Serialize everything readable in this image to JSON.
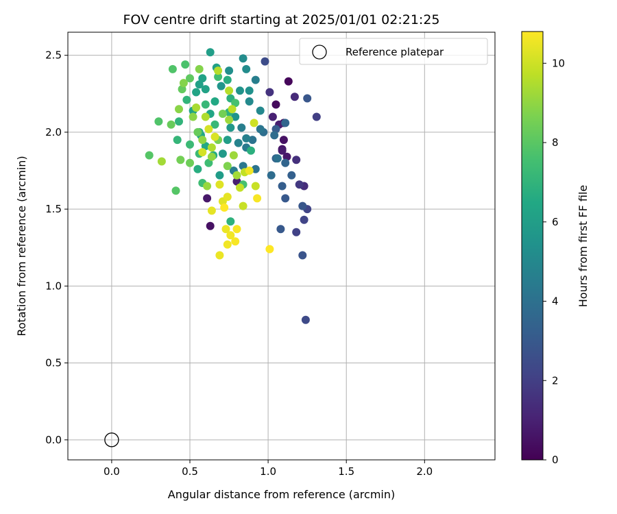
{
  "chart_data": {
    "type": "scatter",
    "title": "FOV centre drift starting at 2025/01/01 02:21:25",
    "xlabel": "Angular distance from reference (arcmin)",
    "ylabel": "Rotation from reference (arcmin)",
    "xlim": [
      -0.28,
      2.45
    ],
    "ylim": [
      -0.13,
      2.65
    ],
    "xticks": [
      "0.0",
      "0.5",
      "1.0",
      "1.5",
      "2.0"
    ],
    "xtick_values": [
      0,
      0.5,
      1.0,
      1.5,
      2.0
    ],
    "yticks": [
      "0.0",
      "0.5",
      "1.0",
      "1.5",
      "2.0",
      "2.5"
    ],
    "ytick_values": [
      0,
      0.5,
      1.0,
      1.5,
      2.0,
      2.5
    ],
    "grid": true,
    "legend": {
      "position": "top-right",
      "entries": [
        "Reference platepar"
      ]
    },
    "colorbar": {
      "label": "Hours from first FF file",
      "min": 0,
      "max": 10.8,
      "ticks": [
        "0",
        "2",
        "4",
        "6",
        "8",
        "10"
      ],
      "tick_values": [
        0,
        2,
        4,
        6,
        8,
        10
      ],
      "colormap": "viridis"
    },
    "reference_point": {
      "name": "Reference platepar",
      "x": 0.0,
      "y": 0.0
    },
    "points": [
      [
        1.13,
        2.33,
        0.2
      ],
      [
        1.05,
        2.18,
        0.3
      ],
      [
        1.1,
        2.06,
        0.4
      ],
      [
        1.1,
        1.95,
        0.5
      ],
      [
        1.09,
        1.89,
        0.6
      ],
      [
        1.12,
        1.84,
        0.7
      ],
      [
        1.09,
        1.88,
        0.8
      ],
      [
        1.07,
        2.05,
        0.9
      ],
      [
        1.03,
        2.1,
        1.0
      ],
      [
        0.63,
        1.39,
        0.5
      ],
      [
        0.61,
        1.57,
        0.7
      ],
      [
        0.8,
        1.68,
        0.9
      ],
      [
        1.17,
        2.23,
        1.3
      ],
      [
        1.23,
        1.65,
        1.4
      ],
      [
        1.18,
        1.82,
        1.5
      ],
      [
        1.01,
        2.26,
        1.6
      ],
      [
        1.2,
        1.66,
        1.8
      ],
      [
        1.31,
        2.1,
        2.0
      ],
      [
        1.18,
        1.35,
        2.1
      ],
      [
        1.25,
        1.5,
        2.2
      ],
      [
        1.23,
        1.43,
        2.2
      ],
      [
        1.24,
        0.78,
        2.4
      ],
      [
        0.98,
        2.46,
        2.5
      ],
      [
        1.22,
        1.2,
        2.8
      ],
      [
        1.22,
        1.52,
        2.9
      ],
      [
        1.25,
        2.22,
        2.9
      ],
      [
        1.08,
        1.37,
        3.0
      ],
      [
        1.11,
        1.57,
        3.0
      ],
      [
        1.05,
        2.02,
        3.1
      ],
      [
        1.09,
        1.65,
        3.2
      ],
      [
        1.15,
        1.72,
        3.3
      ],
      [
        1.05,
        1.83,
        3.4
      ],
      [
        1.11,
        1.8,
        3.5
      ],
      [
        1.11,
        2.06,
        3.5
      ],
      [
        1.02,
        1.72,
        3.8
      ],
      [
        1.04,
        1.98,
        3.8
      ],
      [
        0.97,
        2.0,
        3.9
      ],
      [
        1.06,
        1.83,
        4.0
      ],
      [
        0.9,
        1.95,
        4.1
      ],
      [
        0.92,
        1.76,
        4.1
      ],
      [
        0.95,
        2.02,
        4.2
      ],
      [
        0.84,
        1.78,
        4.3
      ],
      [
        0.86,
        1.9,
        4.4
      ],
      [
        0.78,
        1.75,
        4.5
      ],
      [
        0.92,
        2.34,
        4.6
      ],
      [
        0.83,
        2.03,
        4.6
      ],
      [
        0.86,
        1.96,
        4.7
      ],
      [
        0.81,
        1.93,
        4.8
      ],
      [
        0.95,
        2.14,
        5.0
      ],
      [
        0.88,
        2.2,
        5.1
      ],
      [
        0.86,
        2.41,
        5.2
      ],
      [
        0.84,
        2.48,
        5.2
      ],
      [
        0.75,
        2.4,
        5.3
      ],
      [
        0.88,
        2.27,
        5.4
      ],
      [
        0.82,
        2.27,
        5.5
      ],
      [
        0.79,
        2.1,
        5.5
      ],
      [
        0.7,
        2.3,
        5.6
      ],
      [
        0.76,
        2.03,
        5.7
      ],
      [
        0.71,
        1.86,
        5.8
      ],
      [
        0.69,
        1.72,
        5.9
      ],
      [
        0.74,
        1.95,
        6.0
      ],
      [
        0.63,
        2.52,
        6.0
      ],
      [
        0.67,
        2.42,
        6.1
      ],
      [
        0.56,
        2.31,
        6.1
      ],
      [
        0.58,
        2.35,
        6.2
      ],
      [
        0.6,
        2.28,
        6.2
      ],
      [
        0.54,
        2.26,
        6.3
      ],
      [
        0.52,
        2.14,
        6.3
      ],
      [
        0.63,
        2.12,
        6.4
      ],
      [
        0.57,
        1.98,
        6.4
      ],
      [
        0.66,
        2.2,
        6.5
      ],
      [
        0.6,
        1.91,
        6.5
      ],
      [
        0.56,
        2.0,
        6.6
      ],
      [
        0.65,
        1.85,
        6.6
      ],
      [
        0.55,
        1.76,
        6.7
      ],
      [
        0.74,
        2.34,
        6.7
      ],
      [
        0.76,
        2.22,
        6.8
      ],
      [
        0.89,
        1.88,
        6.8
      ],
      [
        0.76,
        1.42,
        6.9
      ],
      [
        0.75,
        2.13,
        6.9
      ],
      [
        0.48,
        2.21,
        7.0
      ],
      [
        0.43,
        2.07,
        7.0
      ],
      [
        0.42,
        1.95,
        7.1
      ],
      [
        0.6,
        2.18,
        7.2
      ],
      [
        0.66,
        2.05,
        7.2
      ],
      [
        0.5,
        1.92,
        7.3
      ],
      [
        0.56,
        1.86,
        7.3
      ],
      [
        0.62,
        1.8,
        7.4
      ],
      [
        0.58,
        1.67,
        7.4
      ],
      [
        0.68,
        2.36,
        7.5
      ],
      [
        0.79,
        2.19,
        7.6
      ],
      [
        0.84,
        1.66,
        7.6
      ],
      [
        0.47,
        2.44,
        7.7
      ],
      [
        0.39,
        2.41,
        7.8
      ],
      [
        0.3,
        2.07,
        7.8
      ],
      [
        0.24,
        1.85,
        7.9
      ],
      [
        0.41,
        1.62,
        7.9
      ],
      [
        0.5,
        2.35,
        8.1
      ],
      [
        0.45,
        2.28,
        8.2
      ],
      [
        0.38,
        2.05,
        8.3
      ],
      [
        0.55,
        2.0,
        8.3
      ],
      [
        0.5,
        1.8,
        8.4
      ],
      [
        0.44,
        1.82,
        8.5
      ],
      [
        0.71,
        2.12,
        8.5
      ],
      [
        0.68,
        1.95,
        8.6
      ],
      [
        0.74,
        1.78,
        8.7
      ],
      [
        0.56,
        2.41,
        8.8
      ],
      [
        0.46,
        2.32,
        8.8
      ],
      [
        0.43,
        2.15,
        8.9
      ],
      [
        0.52,
        2.1,
        8.9
      ],
      [
        0.58,
        1.95,
        9.0
      ],
      [
        0.64,
        1.84,
        9.0
      ],
      [
        0.61,
        1.65,
        9.1
      ],
      [
        0.75,
        2.08,
        9.2
      ],
      [
        0.78,
        1.85,
        9.2
      ],
      [
        0.8,
        1.72,
        9.3
      ],
      [
        0.32,
        1.81,
        9.3
      ],
      [
        0.54,
        2.16,
        9.4
      ],
      [
        0.6,
        2.1,
        9.5
      ],
      [
        0.64,
        1.9,
        9.5
      ],
      [
        0.68,
        2.4,
        9.6
      ],
      [
        0.75,
        2.27,
        9.6
      ],
      [
        0.77,
        2.15,
        9.7
      ],
      [
        0.85,
        1.74,
        9.8
      ],
      [
        0.82,
        1.64,
        9.8
      ],
      [
        0.84,
        1.52,
        9.9
      ],
      [
        0.92,
        1.65,
        9.9
      ],
      [
        0.91,
        2.06,
        10.0
      ],
      [
        0.62,
        2.02,
        10.1
      ],
      [
        0.58,
        1.87,
        10.1
      ],
      [
        0.66,
        1.97,
        10.2
      ],
      [
        0.69,
        1.66,
        10.3
      ],
      [
        0.71,
        1.55,
        10.3
      ],
      [
        0.74,
        1.58,
        10.4
      ],
      [
        0.64,
        1.49,
        10.4
      ],
      [
        0.73,
        1.37,
        10.5
      ],
      [
        0.69,
        1.2,
        10.5
      ],
      [
        0.74,
        1.27,
        10.6
      ],
      [
        0.76,
        1.33,
        10.6
      ],
      [
        0.8,
        1.37,
        10.7
      ],
      [
        0.79,
        1.29,
        10.7
      ],
      [
        0.72,
        1.51,
        10.8
      ],
      [
        1.01,
        1.24,
        10.8
      ],
      [
        0.93,
        1.57,
        10.7
      ],
      [
        0.88,
        1.75,
        10.6
      ]
    ]
  }
}
